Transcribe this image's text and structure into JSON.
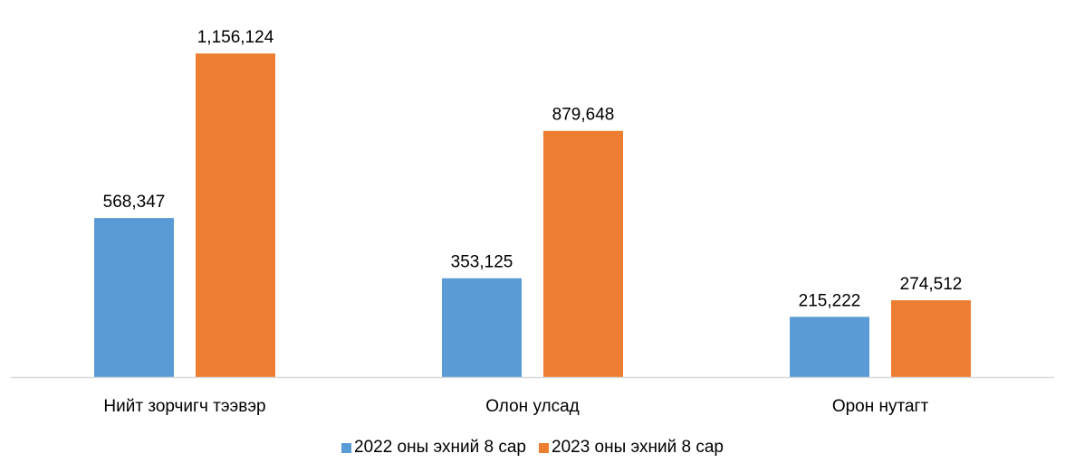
{
  "chart_data": {
    "type": "bar",
    "categories": [
      "Нийт зорчигч тээвэр",
      "Олон улсад",
      "Орон нутагт"
    ],
    "series": [
      {
        "name": "2022 оны эхний 8 сар",
        "values": [
          568347,
          353125,
          215222
        ],
        "labels": [
          "568,347",
          "353,125",
          "215,222"
        ],
        "color": "#5b9bd5"
      },
      {
        "name": "2023 оны эхний 8 сар",
        "values": [
          1156124,
          879648,
          274512
        ],
        "labels": [
          "1,156,124",
          "879,648",
          "274,512"
        ],
        "color": "#ed7d31"
      }
    ],
    "ylim": [
      0,
      1260000
    ],
    "grid": false,
    "legend_position": "bottom",
    "axis_color": "#d9d9d9"
  }
}
